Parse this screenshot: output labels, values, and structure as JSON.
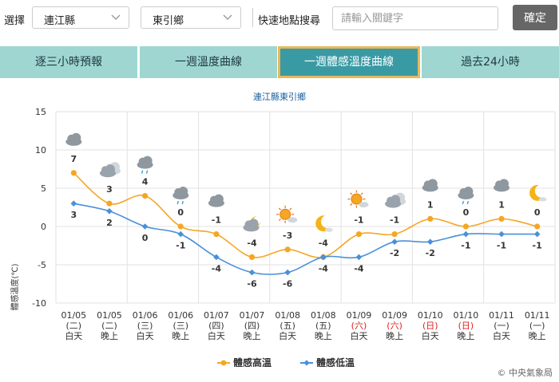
{
  "toolbar": {
    "select_label": "選擇",
    "county_value": "連江縣",
    "township_value": "東引鄉",
    "quick_label": "快速地點搜尋",
    "search_placeholder": "請輸入關鍵字",
    "confirm_label": "確定"
  },
  "tabs": [
    {
      "label": "逐三小時預報",
      "active": false
    },
    {
      "label": "一週溫度曲線",
      "active": false
    },
    {
      "label": "一週體感溫度曲線",
      "active": true
    },
    {
      "label": "過去24小時",
      "active": false
    }
  ],
  "colors": {
    "accent": "#3a9aa4",
    "tab_bg": "#9fd6d2",
    "high": "#f5a623",
    "low": "#4a90d9",
    "weekend": "#e02020"
  },
  "chart_data": {
    "type": "line",
    "title": "連江縣東引鄉",
    "ylabel": "體感溫度(℃)",
    "ylim": [
      -10,
      15
    ],
    "yticks": [
      15,
      10,
      5,
      0,
      -5,
      -10
    ],
    "categories": [
      {
        "date": "01/05",
        "weekday": "(二)",
        "period": "白天",
        "weekend": false
      },
      {
        "date": "01/05",
        "weekday": "(二)",
        "period": "晚上",
        "weekend": false
      },
      {
        "date": "01/06",
        "weekday": "(三)",
        "period": "白天",
        "weekend": false
      },
      {
        "date": "01/06",
        "weekday": "(三)",
        "period": "晚上",
        "weekend": false
      },
      {
        "date": "01/07",
        "weekday": "(四)",
        "period": "白天",
        "weekend": false
      },
      {
        "date": "01/07",
        "weekday": "(四)",
        "period": "晚上",
        "weekend": false
      },
      {
        "date": "01/08",
        "weekday": "(五)",
        "period": "白天",
        "weekend": false
      },
      {
        "date": "01/08",
        "weekday": "(五)",
        "period": "晚上",
        "weekend": false
      },
      {
        "date": "01/09",
        "weekday": "(六)",
        "period": "白天",
        "weekend": true
      },
      {
        "date": "01/09",
        "weekday": "(六)",
        "period": "晚上",
        "weekend": true
      },
      {
        "date": "01/10",
        "weekday": "(日)",
        "period": "白天",
        "weekend": true
      },
      {
        "date": "01/10",
        "weekday": "(日)",
        "period": "晚上",
        "weekend": true
      },
      {
        "date": "01/11",
        "weekday": "(一)",
        "period": "白天",
        "weekend": false
      },
      {
        "date": "01/11",
        "weekday": "(一)",
        "period": "晚上",
        "weekend": false
      }
    ],
    "series": [
      {
        "name": "體感高溫",
        "values": [
          7,
          3,
          4,
          0,
          -1,
          -4,
          -3,
          -4,
          -1,
          -1,
          1,
          0,
          1,
          0
        ]
      },
      {
        "name": "體感低溫",
        "values": [
          3,
          2,
          0,
          -1,
          -4,
          -6,
          -6,
          -4,
          -4,
          -2,
          -2,
          -1,
          -1,
          -1
        ]
      }
    ],
    "weather_icons": [
      "cloudy-icon",
      "partly-cloudy-icon",
      "cloudy-rain-icon",
      "cloudy-rain-icon",
      "cloudy-icon",
      "partly-cloudy-night-icon",
      "sunny-cloud-icon",
      "moon-icon",
      "sunny-cloud-icon",
      "partly-cloudy-icon",
      "cloudy-icon",
      "cloudy-rain-icon",
      "cloudy-icon",
      "moon-icon"
    ],
    "grid": true,
    "legend": "bottom-center"
  },
  "footer": {
    "credit": "© 中央氣象局"
  }
}
